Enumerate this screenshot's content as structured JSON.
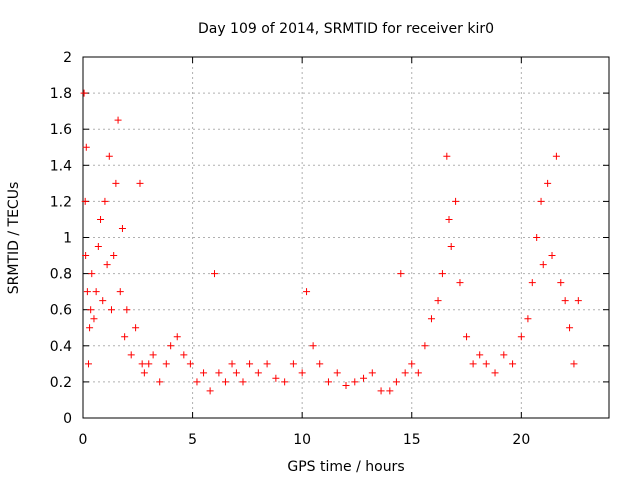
{
  "chart_data": {
    "type": "scatter",
    "title": "Day 109 of 2014, SRMTID for receiver kir0",
    "xlabel": "GPS time / hours",
    "ylabel": "SRMTID / TECUs",
    "xlim": [
      0,
      24
    ],
    "ylim": [
      0,
      2
    ],
    "x_ticks": [
      "0",
      "5",
      "10",
      "15",
      "20"
    ],
    "y_ticks": [
      "0",
      "0.2",
      "0.4",
      "0.6",
      "0.8",
      "1",
      "1.2",
      "1.4",
      "1.6",
      "1.8",
      "2"
    ],
    "grid": true,
    "marker": "+",
    "series": [
      {
        "name": "kir0",
        "color": "#ff0000",
        "x": [
          0.05,
          0.1,
          0.12,
          0.15,
          0.2,
          0.25,
          0.3,
          0.35,
          0.4,
          0.5,
          0.6,
          0.7,
          0.8,
          0.9,
          1.0,
          1.1,
          1.2,
          1.3,
          1.4,
          1.5,
          1.6,
          1.7,
          1.8,
          1.9,
          2.0,
          2.2,
          2.4,
          2.6,
          2.7,
          2.8,
          3.0,
          3.2,
          3.5,
          3.8,
          4.0,
          4.3,
          4.6,
          4.9,
          5.2,
          5.5,
          5.8,
          6.0,
          6.2,
          6.5,
          6.8,
          7.0,
          7.3,
          7.6,
          8.0,
          8.4,
          8.8,
          9.2,
          9.6,
          10.0,
          10.2,
          10.5,
          10.8,
          11.2,
          11.6,
          12.0,
          12.4,
          12.8,
          13.2,
          13.6,
          14.0,
          14.3,
          14.5,
          14.7,
          15.0,
          15.3,
          15.6,
          15.9,
          16.2,
          16.4,
          16.6,
          16.7,
          16.8,
          17.0,
          17.2,
          17.5,
          17.8,
          18.1,
          18.4,
          18.8,
          19.2,
          19.6,
          20.0,
          20.3,
          20.5,
          20.7,
          20.9,
          21.0,
          21.2,
          21.4,
          21.6,
          21.8,
          22.0,
          22.2,
          22.4,
          22.6
        ],
        "y": [
          1.8,
          1.2,
          0.9,
          1.5,
          0.7,
          0.3,
          0.5,
          0.6,
          0.8,
          0.55,
          0.7,
          0.95,
          1.1,
          0.65,
          1.2,
          0.85,
          1.45,
          0.6,
          0.9,
          1.3,
          1.65,
          0.7,
          1.05,
          0.45,
          0.6,
          0.35,
          0.5,
          1.3,
          0.3,
          0.25,
          0.3,
          0.35,
          0.2,
          0.3,
          0.4,
          0.45,
          0.35,
          0.3,
          0.2,
          0.25,
          0.15,
          0.8,
          0.25,
          0.2,
          0.3,
          0.25,
          0.2,
          0.3,
          0.25,
          0.3,
          0.22,
          0.2,
          0.3,
          0.25,
          0.7,
          0.4,
          0.3,
          0.2,
          0.25,
          0.18,
          0.2,
          0.22,
          0.25,
          0.15,
          0.15,
          0.2,
          0.8,
          0.25,
          0.3,
          0.25,
          0.4,
          0.55,
          0.65,
          0.8,
          1.45,
          1.1,
          0.95,
          1.2,
          0.75,
          0.45,
          0.3,
          0.35,
          0.3,
          0.25,
          0.35,
          0.3,
          0.45,
          0.55,
          0.75,
          1.0,
          1.2,
          0.85,
          1.3,
          0.9,
          1.45,
          0.75,
          0.65,
          0.5,
          0.3,
          0.65
        ]
      }
    ]
  }
}
